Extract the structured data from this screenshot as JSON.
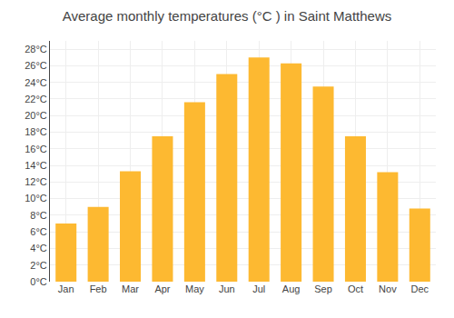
{
  "chart_data": {
    "type": "bar",
    "title": "Average monthly temperatures (°C ) in Saint Matthews",
    "categories": [
      "Jan",
      "Feb",
      "Mar",
      "Apr",
      "May",
      "Jun",
      "Jul",
      "Aug",
      "Sep",
      "Oct",
      "Nov",
      "Dec"
    ],
    "values": [
      7.0,
      9.0,
      13.3,
      17.5,
      21.6,
      25.0,
      27.0,
      26.3,
      23.5,
      17.5,
      13.2,
      8.8
    ],
    "color": "#FDB931",
    "ylim": [
      0,
      29
    ],
    "yticks": [
      {
        "value": 0,
        "label": "0°C"
      },
      {
        "value": 2,
        "label": "2°C"
      },
      {
        "value": 4,
        "label": "4°C"
      },
      {
        "value": 6,
        "label": "6°C"
      },
      {
        "value": 8,
        "label": "8°C"
      },
      {
        "value": 10,
        "label": "10°C"
      },
      {
        "value": 12,
        "label": "12°C"
      },
      {
        "value": 14,
        "label": "14°C"
      },
      {
        "value": 16,
        "label": "16°C"
      },
      {
        "value": 18,
        "label": "18°C"
      },
      {
        "value": 20,
        "label": "20°C"
      },
      {
        "value": 22,
        "label": "22°C"
      },
      {
        "value": 24,
        "label": "24°C"
      },
      {
        "value": 26,
        "label": "26°C"
      },
      {
        "value": 28,
        "label": "28°C"
      }
    ],
    "grid": true
  }
}
